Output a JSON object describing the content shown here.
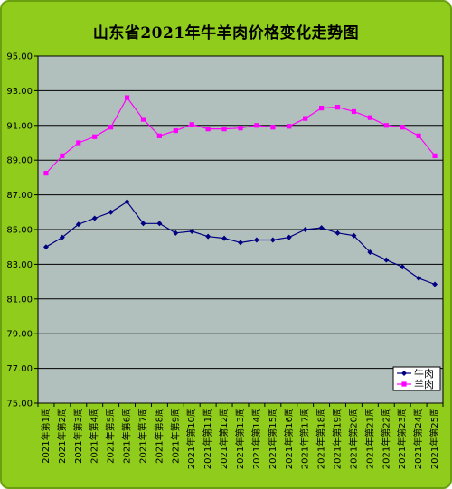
{
  "chart_data": {
    "type": "line",
    "title": "山东省2021年牛羊肉价格变化走势图",
    "xlabel": "",
    "ylabel": "",
    "ylim": [
      75,
      95
    ],
    "yticks": [
      "75.00",
      "77.00",
      "79.00",
      "81.00",
      "83.00",
      "85.00",
      "87.00",
      "89.00",
      "91.00",
      "93.00",
      "95.00"
    ],
    "grid": true,
    "legend_position": "bottom-right",
    "categories": [
      "2021年第1周",
      "2021年第2周",
      "2021年第3周",
      "2021年第4周",
      "2021年第5周",
      "2021年第6周",
      "2021年第7周",
      "2021年第8周",
      "2021年第9周",
      "2021年第10周",
      "2021年第11周",
      "2021年第12周",
      "2021年第13周",
      "2021年第14周",
      "2021年第15周",
      "2021年第16周",
      "2021年第17周",
      "2021年第18周",
      "2021年第19周",
      "2021年第20周",
      "2021年第21周",
      "2021年第22周",
      "2021年第23周",
      "2021年第24周",
      "2021年第25周"
    ],
    "series": [
      {
        "name": "牛肉",
        "color": "#000080",
        "marker": "diamond",
        "values": [
          84.0,
          84.55,
          85.3,
          85.65,
          86.0,
          86.6,
          85.35,
          85.35,
          84.8,
          84.9,
          84.6,
          84.5,
          84.25,
          84.4,
          84.4,
          84.55,
          85.0,
          85.1,
          84.8,
          84.65,
          83.7,
          83.25,
          82.85,
          82.2,
          81.85
        ]
      },
      {
        "name": "羊肉",
        "color": "#ff00ff",
        "marker": "square",
        "values": [
          88.25,
          89.25,
          90.0,
          90.35,
          90.9,
          92.6,
          91.35,
          90.4,
          90.7,
          91.05,
          90.8,
          90.8,
          90.85,
          91.0,
          90.9,
          90.95,
          91.4,
          92.0,
          92.05,
          91.8,
          91.45,
          91.0,
          90.9,
          90.4,
          89.25
        ]
      }
    ]
  },
  "colors": {
    "frame_bg": "#8fcc1c",
    "plot_bg": "#a9b7b4",
    "grid_line": "#000000"
  }
}
